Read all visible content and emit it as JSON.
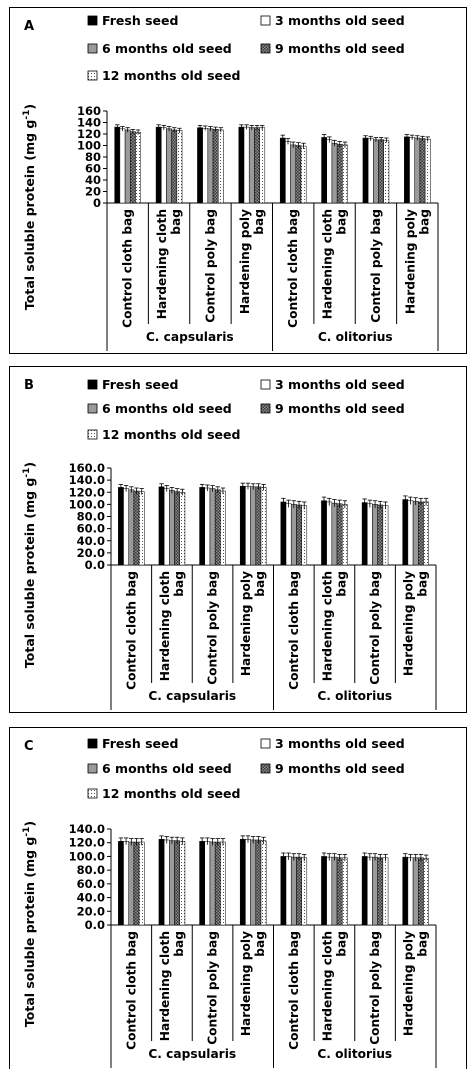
{
  "figure": {
    "panels": [
      {
        "letter": "A",
        "ylabel_main": "Total soluble protein (mg g",
        "ylabel_sup": "-1",
        "ylabel_close": ")",
        "yticks": [
          "160",
          "140",
          "120",
          "100",
          "80",
          "60",
          "40",
          "20",
          "0"
        ],
        "categories": [
          "Control cloth bag",
          "Hardening cloth bag",
          "Control poly bag",
          "Hardening poly bag",
          "Control cloth bag",
          "Hardening cloth bag",
          "Control poly bag",
          "Hardening poly bag"
        ],
        "groups": [
          "C. capsularis",
          "C. olitorius"
        ]
      },
      {
        "letter": "B",
        "ylabel_main": "Total soluble protein (mg g",
        "ylabel_sup": "-1",
        "ylabel_close": ")",
        "yticks": [
          "160.0",
          "140.0",
          "120.0",
          "100.0",
          "80.0",
          "60.0",
          "40.0",
          "20.0",
          "0.0"
        ],
        "categories": [
          "Control cloth bag",
          "Hardening cloth bag",
          "Control poly bag",
          "Hardening poly bag",
          "Control cloth bag",
          "Hardening cloth bag",
          "Control poly bag",
          "Hardening poly bag"
        ],
        "groups": [
          "C. capsularis",
          "C. olitorius"
        ]
      },
      {
        "letter": "C",
        "ylabel_main": "Total soluble protein (mg g",
        "ylabel_sup": "-1",
        "ylabel_close": ")",
        "yticks": [
          "140.0",
          "120.0",
          "100.0",
          "80.0",
          "60.0",
          "40.0",
          "20.0",
          "0.0"
        ],
        "categories": [
          "Control cloth bag",
          "Hardening cloth bag",
          "Control poly bag",
          "Hardening poly bag",
          "Control cloth bag",
          "Hardening cloth bag",
          "Control poly bag",
          "Hardening poly bag"
        ],
        "groups": [
          "C. capsularis",
          "C. olitorius"
        ]
      }
    ]
  },
  "chart_data": [
    {
      "type": "bar",
      "ylabel": "Total soluble protein (mg g-1)",
      "ylim": [
        0,
        160
      ],
      "categories": [
        "Control cloth bag",
        "Hardening cloth bag",
        "Control poly bag",
        "Hardening poly bag",
        "Control cloth bag",
        "Hardening cloth bag",
        "Control poly bag",
        "Hardening poly bag"
      ],
      "category_groups": [
        {
          "name": "C. capsularis",
          "categories": [
            "Control cloth bag",
            "Hardening cloth bag",
            "Control poly bag",
            "Hardening poly bag"
          ]
        },
        {
          "name": "C. olitorius",
          "categories": [
            "Control cloth bag",
            "Hardening cloth bag",
            "Control poly bag",
            "Hardening poly bag"
          ]
        }
      ],
      "series": [
        {
          "name": "Fresh seed",
          "values": [
            132,
            132,
            131,
            132,
            113,
            114,
            113,
            115
          ],
          "error": [
            4,
            4,
            4,
            4,
            5,
            5,
            4,
            4
          ]
        },
        {
          "name": "3 months old seed",
          "values": [
            129,
            131,
            130,
            132,
            107,
            110,
            112,
            114
          ],
          "error": [
            4,
            4,
            4,
            4,
            5,
            5,
            4,
            4
          ]
        },
        {
          "name": "6 months  old seed",
          "values": [
            127,
            129,
            129,
            131,
            101,
            104,
            110,
            113
          ],
          "error": [
            4,
            4,
            4,
            4,
            5,
            5,
            4,
            4
          ]
        },
        {
          "name": "9 months  old seed",
          "values": [
            124,
            127,
            128,
            131,
            100,
            102,
            110,
            112
          ],
          "error": [
            4,
            4,
            4,
            4,
            5,
            5,
            4,
            4
          ]
        },
        {
          "name": "12 months  old seed",
          "values": [
            123,
            126,
            127,
            131,
            99,
            101,
            109,
            111
          ],
          "error": [
            4,
            4,
            4,
            4,
            5,
            5,
            4,
            4
          ]
        }
      ]
    },
    {
      "type": "bar",
      "ylabel": "Total soluble protein (mg g-1)",
      "ylim": [
        0,
        160
      ],
      "categories": [
        "Control cloth bag",
        "Hardening cloth bag",
        "Control poly bag",
        "Hardening poly bag",
        "Control cloth bag",
        "Hardening cloth bag",
        "Control poly bag",
        "Hardening poly bag"
      ],
      "category_groups": [
        {
          "name": "C. capsularis",
          "categories": [
            "Control cloth bag",
            "Hardening cloth bag",
            "Control poly bag",
            "Hardening poly bag"
          ]
        },
        {
          "name": "C. olitorius",
          "categories": [
            "Control cloth bag",
            "Hardening cloth bag",
            "Control poly bag",
            "Hardening poly bag"
          ]
        }
      ],
      "series": [
        {
          "name": "Fresh seed",
          "values": [
            128,
            129,
            128,
            130,
            104,
            106,
            103,
            108
          ],
          "error": [
            5,
            5,
            5,
            5,
            6,
            6,
            6,
            6
          ]
        },
        {
          "name": "3 months old seed",
          "values": [
            126,
            126,
            127,
            130,
            101,
            104,
            101,
            106
          ],
          "error": [
            5,
            5,
            5,
            5,
            6,
            6,
            6,
            6
          ]
        },
        {
          "name": "6 months  old seed",
          "values": [
            124,
            123,
            126,
            129,
            100,
            102,
            100,
            105
          ],
          "error": [
            5,
            5,
            5,
            5,
            6,
            6,
            6,
            6
          ]
        },
        {
          "name": "9 months  old seed",
          "values": [
            122,
            121,
            124,
            129,
            99,
            101,
            99,
            104
          ],
          "error": [
            5,
            5,
            5,
            5,
            6,
            6,
            6,
            6
          ]
        },
        {
          "name": "12 months  old seed",
          "values": [
            121,
            120,
            122,
            128,
            98,
            100,
            98,
            104
          ],
          "error": [
            5,
            5,
            5,
            5,
            6,
            6,
            6,
            6
          ]
        }
      ]
    },
    {
      "type": "bar",
      "ylabel": "Total soluble protein (mg g-1)",
      "ylim": [
        0,
        140
      ],
      "categories": [
        "Control cloth bag",
        "Hardening cloth bag",
        "Control poly bag",
        "Hardening poly bag",
        "Control cloth bag",
        "Hardening cloth bag",
        "Control poly bag",
        "Hardening poly bag"
      ],
      "category_groups": [
        {
          "name": "C. capsularis",
          "categories": [
            "Control cloth bag",
            "Hardening cloth bag",
            "Control poly bag",
            "Hardening poly bag"
          ]
        },
        {
          "name": "C. olitorius",
          "categories": [
            "Control cloth bag",
            "Hardening cloth bag",
            "Control poly bag",
            "Hardening poly bag"
          ]
        }
      ],
      "series": [
        {
          "name": "Fresh seed",
          "values": [
            122,
            125,
            122,
            125,
            100,
            100,
            100,
            99
          ],
          "error": [
            5,
            5,
            5,
            5,
            5,
            5,
            5,
            5
          ]
        },
        {
          "name": "3 months old seed",
          "values": [
            122,
            124,
            122,
            125,
            100,
            99,
            99,
            98
          ],
          "error": [
            5,
            5,
            5,
            5,
            5,
            5,
            5,
            5
          ]
        },
        {
          "name": "6 months  old seed",
          "values": [
            121,
            123,
            121,
            124,
            99,
            99,
            99,
            98
          ],
          "error": [
            5,
            5,
            5,
            5,
            5,
            5,
            5,
            5
          ]
        },
        {
          "name": "9 months  old seed",
          "values": [
            121,
            123,
            121,
            124,
            99,
            98,
            98,
            98
          ],
          "error": [
            5,
            5,
            5,
            5,
            5,
            5,
            5,
            5
          ]
        },
        {
          "name": "12 months  old seed",
          "values": [
            121,
            122,
            121,
            123,
            98,
            98,
            98,
            97
          ],
          "error": [
            5,
            5,
            5,
            5,
            5,
            5,
            5,
            5
          ]
        }
      ]
    }
  ],
  "styles": {
    "series_fill": [
      "#000000",
      "#ffffff",
      "#9a9a9a",
      "#6b6b6b",
      "#ffffff"
    ],
    "series_pattern": [
      "solid",
      "solid",
      "solid",
      "checker",
      "dotted"
    ],
    "axis_color": "#000000",
    "panel_border": "#000000"
  }
}
